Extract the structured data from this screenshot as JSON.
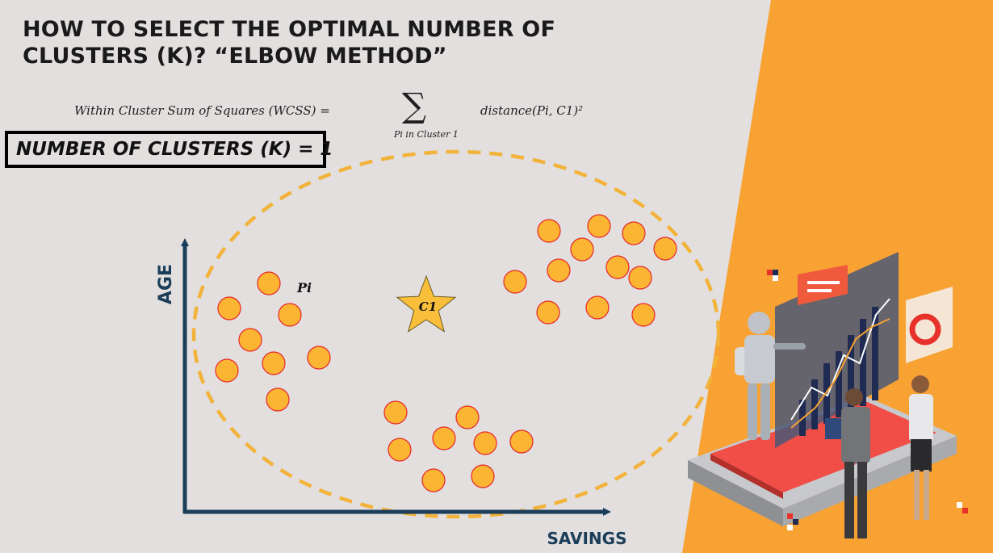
{
  "slide": {
    "title_line1": "HOW TO SELECT THE OPTIMAL NUMBER OF",
    "title_line2": "CLUSTERS (K)? “ELBOW METHOD”",
    "formula": {
      "lhs": "Within Cluster Sum of Squares (WCSS) =",
      "sum_symbol": "∑",
      "sum_subscript": "Pi in Cluster 1",
      "rhs": "distance(Pi, C1)²"
    },
    "k_label": "NUMBER OF CLUSTERS (K) = 1"
  },
  "diagram": {
    "x_axis_label": "SAVINGS",
    "y_axis_label": "AGE",
    "point_label": "Pi",
    "centroid_label": "C1",
    "colors": {
      "background": "#e2dfde",
      "accent_orange": "#f7a233",
      "point_fill": "#fbb532",
      "point_stroke": "#e8262b",
      "axis": "#1a3d5a",
      "ellipse": "#f3b33b",
      "star_fill": "#f9bf3b"
    },
    "points": [
      {
        "savings": 333,
        "age": 351
      },
      {
        "savings": 284,
        "age": 382
      },
      {
        "savings": 359,
        "age": 390
      },
      {
        "savings": 310,
        "age": 421
      },
      {
        "savings": 339,
        "age": 450
      },
      {
        "savings": 395,
        "age": 443
      },
      {
        "savings": 281,
        "age": 459
      },
      {
        "savings": 344,
        "age": 495
      },
      {
        "savings": 490,
        "age": 511
      },
      {
        "savings": 579,
        "age": 517
      },
      {
        "savings": 550,
        "age": 543
      },
      {
        "savings": 601,
        "age": 549
      },
      {
        "savings": 646,
        "age": 547
      },
      {
        "savings": 495,
        "age": 557
      },
      {
        "savings": 537,
        "age": 595
      },
      {
        "savings": 598,
        "age": 590
      },
      {
        "savings": 680,
        "age": 286
      },
      {
        "savings": 742,
        "age": 280
      },
      {
        "savings": 785,
        "age": 289
      },
      {
        "savings": 721,
        "age": 309
      },
      {
        "savings": 824,
        "age": 308
      },
      {
        "savings": 692,
        "age": 335
      },
      {
        "savings": 765,
        "age": 331
      },
      {
        "savings": 793,
        "age": 344
      },
      {
        "savings": 638,
        "age": 349
      },
      {
        "savings": 679,
        "age": 387
      },
      {
        "savings": 740,
        "age": 381
      },
      {
        "savings": 797,
        "age": 390
      }
    ],
    "centroid": {
      "savings": 528,
      "age": 380
    }
  }
}
